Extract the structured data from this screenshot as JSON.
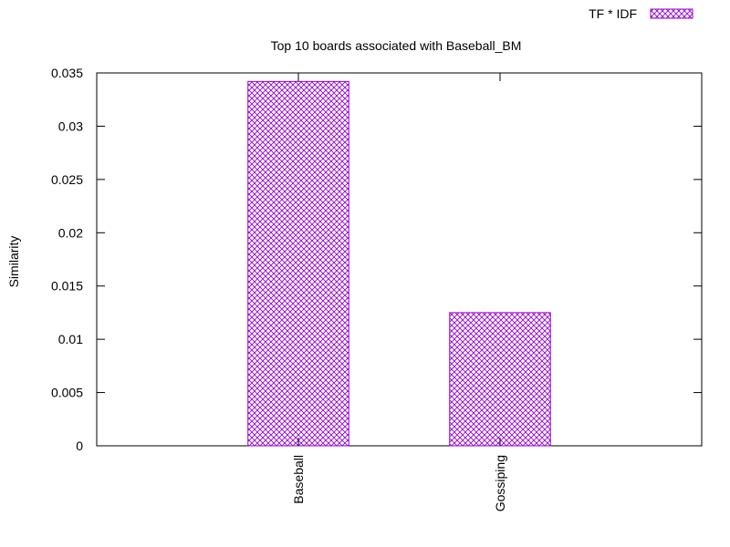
{
  "chart_data": {
    "type": "bar",
    "title": "Top 10 boards associated with Baseball_BM",
    "xlabel": "",
    "ylabel": "Similarity",
    "categories": [
      "Baseball",
      "Gossiping"
    ],
    "series": [
      {
        "name": "TF * IDF",
        "values": [
          0.0342,
          0.0125
        ]
      }
    ],
    "ylim": [
      0,
      0.035
    ],
    "yticks": [
      "0",
      "0.005",
      "0.01",
      "0.015",
      "0.02",
      "0.025",
      "0.03",
      "0.035"
    ],
    "yticks_values": [
      0,
      0.005,
      0.01,
      0.015,
      0.02,
      0.025,
      0.03,
      0.035
    ],
    "grid": false,
    "legend_position": "top-right",
    "colors": {
      "bar": "#9400d3",
      "axis": "#000000"
    }
  }
}
